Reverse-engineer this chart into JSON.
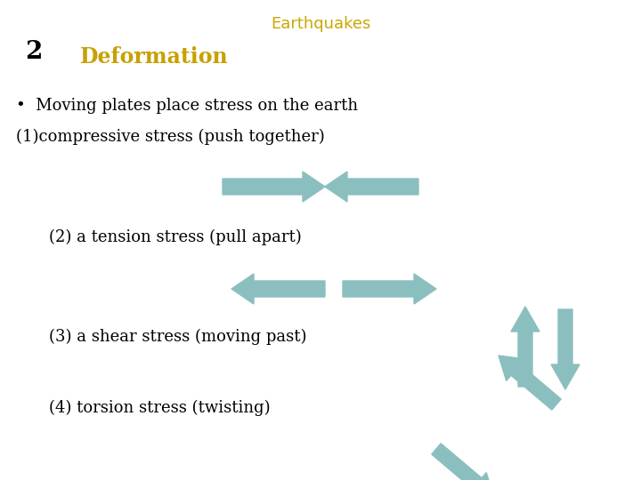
{
  "title": "Earthquakes",
  "title_color": "#C8A800",
  "title_fontsize": 13,
  "number": "2",
  "number_fontsize": 20,
  "subtitle": "Deformation",
  "subtitle_color": "#C8A000",
  "subtitle_fontsize": 17,
  "bullet_text": "•  Moving plates place stress on the earth",
  "bullet_fontsize": 13,
  "line2_text": "(1)compressive stress (push together)",
  "line2_fontsize": 13,
  "text3": "(2) a tension stress (pull apart)",
  "text3_fontsize": 13,
  "text4": "(3) a shear stress (moving past)",
  "text4_fontsize": 13,
  "text5": "(4) torsion stress (twisting)",
  "text5_fontsize": 13,
  "arrow_color": "#8BBFBF",
  "bg_color": "#FFFFFF",
  "text_color": "#000000"
}
